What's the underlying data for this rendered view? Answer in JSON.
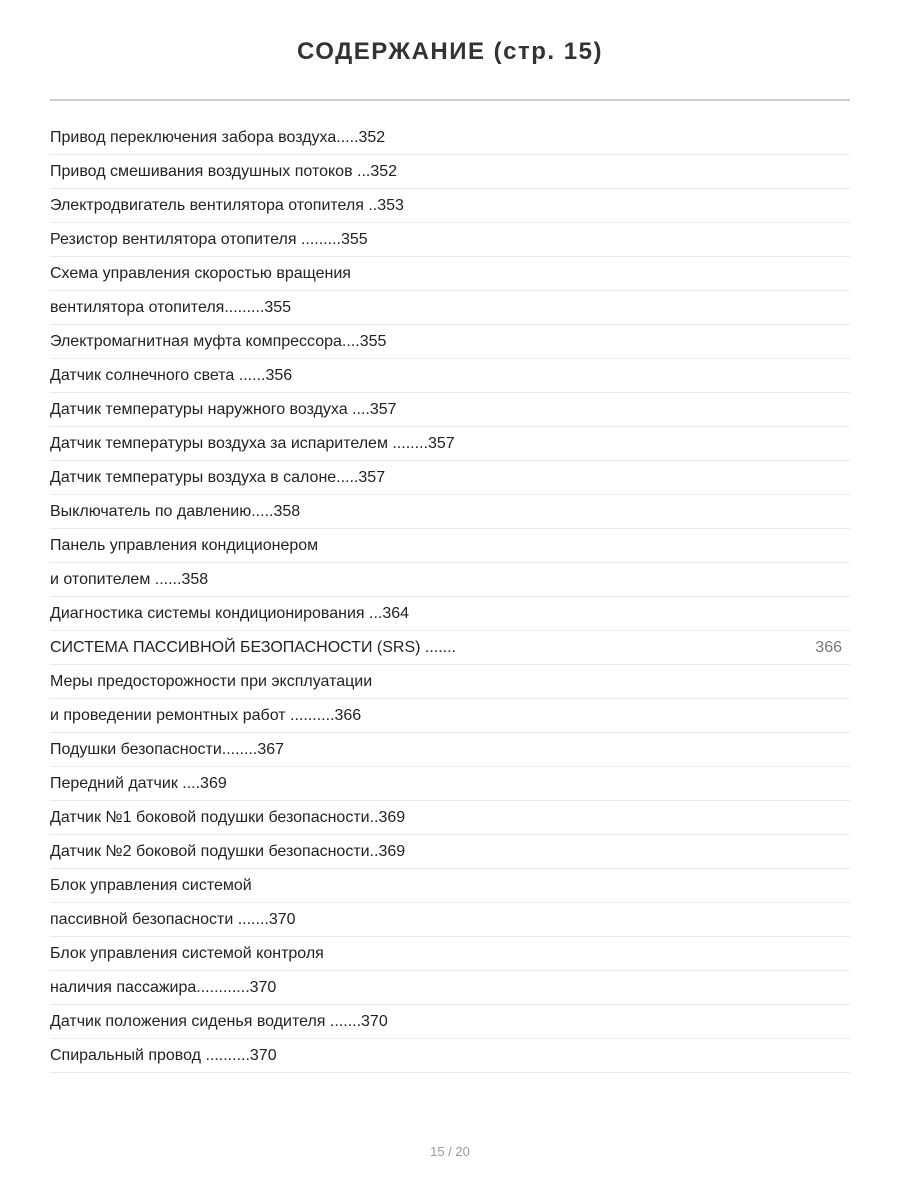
{
  "title": "СОДЕРЖАНИЕ (стр. 15)",
  "entries": [
    {
      "text": "Привод переключения забора воздуха.....352",
      "page": ""
    },
    {
      "text": "Привод смешивания воздушных потоков ...352",
      "page": ""
    },
    {
      "text": "Электродвигатель вентилятора отопителя ..353",
      "page": ""
    },
    {
      "text": "Резистор вентилятора отопителя .........355",
      "page": ""
    },
    {
      "text": "Схема управления скоростью вращения",
      "page": ""
    },
    {
      "text": "вентилятора отопителя.........355",
      "page": ""
    },
    {
      "text": "Электромагнитная муфта компрессора....355",
      "page": ""
    },
    {
      "text": "Датчик солнечного света ......356",
      "page": ""
    },
    {
      "text": "Датчик температуры наружного воздуха ....357",
      "page": ""
    },
    {
      "text": "Датчик температуры воздуха за испарителем ........357",
      "page": ""
    },
    {
      "text": "Датчик температуры воздуха в салоне.....357",
      "page": ""
    },
    {
      "text": "Выключатель по давлению.....358",
      "page": ""
    },
    {
      "text": "Панель управления кондиционером",
      "page": ""
    },
    {
      "text": "и отопителем ......358",
      "page": ""
    },
    {
      "text": "Диагностика системы кондиционирования ...364",
      "page": ""
    },
    {
      "text": "СИСТЕМА ПАССИВНОЙ БЕЗОПАСНОСТИ (SRS) .......",
      "page": "366"
    },
    {
      "text": "Меры предосторожности при эксплуатации",
      "page": ""
    },
    {
      "text": "и проведении ремонтных работ ..........366",
      "page": ""
    },
    {
      "text": "Подушки безопасности........367",
      "page": ""
    },
    {
      "text": "Передний датчик ....369",
      "page": ""
    },
    {
      "text": "Датчик №1 боковой подушки безопасности..369",
      "page": ""
    },
    {
      "text": "Датчик №2 боковой подушки безопасности..369",
      "page": ""
    },
    {
      "text": "Блок управления системой",
      "page": ""
    },
    {
      "text": "пассивной безопасности .......370",
      "page": ""
    },
    {
      "text": "Блок управления системой контроля",
      "page": ""
    },
    {
      "text": "наличия пассажира............370",
      "page": ""
    },
    {
      "text": "Датчик положения сиденья водителя .......370",
      "page": ""
    },
    {
      "text": "Спиральный провод ..........370",
      "page": ""
    }
  ],
  "footer": "15 / 20"
}
